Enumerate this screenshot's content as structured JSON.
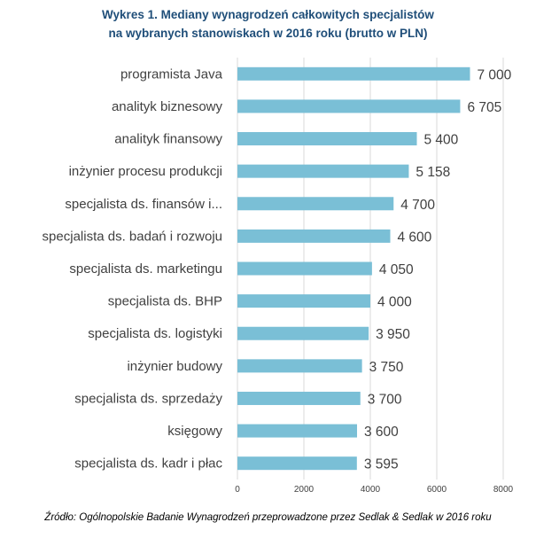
{
  "chart_data": {
    "type": "bar",
    "orientation": "horizontal",
    "title_line1": "Wykres 1. Mediany wynagrodzeń całkowitych specjalistów",
    "title_line2": "na wybranych stanowiskach w 2016 roku (brutto w PLN)",
    "categories": [
      "programista Java",
      "analityk biznesowy",
      "analityk finansowy",
      "inżynier procesu produkcji",
      "specjalista ds. finansów i...",
      "specjalista ds. badań i rozwoju",
      "specjalista ds. marketingu",
      "specjalista ds. BHP",
      "specjalista ds. logistyki",
      "inżynier budowy",
      "specjalista ds. sprzedaży",
      "księgowy",
      "specjalista ds. kadr i płac"
    ],
    "values": [
      7000,
      6705,
      5400,
      5158,
      4700,
      4600,
      4050,
      4000,
      3950,
      3750,
      3700,
      3600,
      3595
    ],
    "value_labels": [
      "7 000",
      "6 705",
      "5 400",
      "5 158",
      "4 700",
      "4 600",
      "4 050",
      "4 000",
      "3 950",
      "3 750",
      "3 700",
      "3 600",
      "3 595"
    ],
    "xlim": [
      0,
      8000
    ],
    "xticks": [
      0,
      2000,
      4000,
      6000,
      8000
    ],
    "xtick_labels": [
      "0",
      "2000",
      "4000",
      "6000",
      "8000"
    ],
    "grid": true,
    "bar_color": "#7abfd6",
    "grid_color": "#d9d9d9",
    "source": "Źródło: Ogólnopolskie Badanie Wynagrodzeń przeprowadzone przez Sedlak & Sedlak w 2016 roku"
  }
}
